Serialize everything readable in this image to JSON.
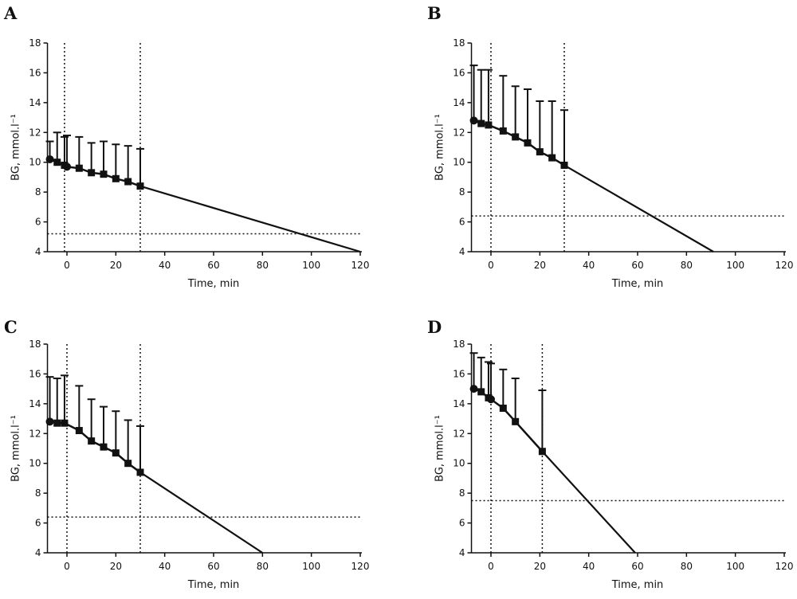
{
  "chart_data": [
    {
      "panel": "A",
      "type": "line",
      "xlabel": "Time, min",
      "ylabel": "BG, mmol.l⁻¹",
      "xlim": [
        -7,
        120
      ],
      "ylim": [
        4,
        18
      ],
      "xticks": [
        0,
        20,
        40,
        60,
        80,
        100,
        120
      ],
      "yticks": [
        4,
        6,
        8,
        10,
        12,
        14,
        16,
        18
      ],
      "grid": false,
      "vlines": [
        -1,
        30
      ],
      "hline": 5.2,
      "points": [
        {
          "x": -7,
          "y": 10.2,
          "err": 1.2,
          "marker": "circle"
        },
        {
          "x": -4,
          "y": 10.0,
          "err": 2.0,
          "marker": "square"
        },
        {
          "x": -1,
          "y": 9.8,
          "err": 1.9,
          "marker": "square"
        },
        {
          "x": 0,
          "y": 9.7,
          "err": 2.1,
          "marker": "circle"
        },
        {
          "x": 5,
          "y": 9.6,
          "err": 2.1,
          "marker": "square"
        },
        {
          "x": 10,
          "y": 9.3,
          "err": 2.0,
          "marker": "square"
        },
        {
          "x": 15,
          "y": 9.2,
          "err": 2.2,
          "marker": "square"
        },
        {
          "x": 20,
          "y": 8.9,
          "err": 2.3,
          "marker": "square"
        },
        {
          "x": 25,
          "y": 8.7,
          "err": 2.4,
          "marker": "square"
        },
        {
          "x": 30,
          "y": 8.4,
          "err": 2.5,
          "marker": "square"
        }
      ],
      "extrapolation": [
        [
          30,
          8.4
        ],
        [
          120,
          4.0
        ]
      ]
    },
    {
      "panel": "B",
      "type": "line",
      "xlabel": "Time, min",
      "ylabel": "BG, mmol.l⁻¹",
      "xlim": [
        -7,
        120
      ],
      "ylim": [
        4,
        18
      ],
      "xticks": [
        0,
        20,
        40,
        60,
        80,
        100,
        120
      ],
      "yticks": [
        4,
        6,
        8,
        10,
        12,
        14,
        16,
        18
      ],
      "grid": false,
      "vlines": [
        0,
        30
      ],
      "hline": 6.4,
      "points": [
        {
          "x": -7,
          "y": 12.8,
          "err": 3.7,
          "marker": "circle"
        },
        {
          "x": -4,
          "y": 12.6,
          "err": 3.6,
          "marker": "square"
        },
        {
          "x": -1,
          "y": 12.5,
          "err": 3.7,
          "marker": "square"
        },
        {
          "x": 5,
          "y": 12.1,
          "err": 3.7,
          "marker": "square"
        },
        {
          "x": 10,
          "y": 11.7,
          "err": 3.4,
          "marker": "square"
        },
        {
          "x": 15,
          "y": 11.3,
          "err": 3.6,
          "marker": "square"
        },
        {
          "x": 20,
          "y": 10.7,
          "err": 3.4,
          "marker": "square"
        },
        {
          "x": 25,
          "y": 10.3,
          "err": 3.8,
          "marker": "square"
        },
        {
          "x": 30,
          "y": 9.8,
          "err": 3.7,
          "marker": "square"
        }
      ],
      "extrapolation": [
        [
          30,
          9.8
        ],
        [
          91,
          4.0
        ]
      ]
    },
    {
      "panel": "C",
      "type": "line",
      "xlabel": "Time, min",
      "ylabel": "BG, mmol.l⁻¹",
      "xlim": [
        -7,
        120
      ],
      "ylim": [
        4,
        18
      ],
      "xticks": [
        0,
        20,
        40,
        60,
        80,
        100,
        120
      ],
      "yticks": [
        4,
        6,
        8,
        10,
        12,
        14,
        16,
        18
      ],
      "grid": false,
      "vlines": [
        0,
        30
      ],
      "hline": 6.4,
      "points": [
        {
          "x": -7,
          "y": 12.8,
          "err": 3.0,
          "marker": "circle"
        },
        {
          "x": -4,
          "y": 12.7,
          "err": 3.0,
          "marker": "square"
        },
        {
          "x": -1,
          "y": 12.7,
          "err": 3.2,
          "marker": "square"
        },
        {
          "x": 5,
          "y": 12.2,
          "err": 3.0,
          "marker": "square"
        },
        {
          "x": 10,
          "y": 11.5,
          "err": 2.8,
          "marker": "square"
        },
        {
          "x": 15,
          "y": 11.1,
          "err": 2.7,
          "marker": "square"
        },
        {
          "x": 20,
          "y": 10.7,
          "err": 2.8,
          "marker": "square"
        },
        {
          "x": 25,
          "y": 10.0,
          "err": 2.9,
          "marker": "square"
        },
        {
          "x": 30,
          "y": 9.4,
          "err": 3.1,
          "marker": "square"
        }
      ],
      "extrapolation": [
        [
          30,
          9.4
        ],
        [
          80,
          4.0
        ]
      ]
    },
    {
      "panel": "D",
      "type": "line",
      "xlabel": "Time, min",
      "ylabel": "BG, mmol.l⁻¹",
      "xlim": [
        -7,
        120
      ],
      "ylim": [
        4,
        18
      ],
      "xticks": [
        0,
        20,
        40,
        60,
        80,
        100,
        120
      ],
      "yticks": [
        4,
        6,
        8,
        10,
        12,
        14,
        16,
        18
      ],
      "grid": false,
      "vlines": [
        0,
        21
      ],
      "hline": 7.5,
      "points": [
        {
          "x": -7,
          "y": 15.0,
          "err": 2.4,
          "marker": "circle"
        },
        {
          "x": -4,
          "y": 14.8,
          "err": 2.3,
          "marker": "square"
        },
        {
          "x": -1,
          "y": 14.4,
          "err": 2.4,
          "marker": "square"
        },
        {
          "x": 0,
          "y": 14.3,
          "err": 2.4,
          "marker": "circle"
        },
        {
          "x": 5,
          "y": 13.7,
          "err": 2.6,
          "marker": "square"
        },
        {
          "x": 10,
          "y": 12.8,
          "err": 2.9,
          "marker": "square"
        },
        {
          "x": 21,
          "y": 10.8,
          "err": 4.1,
          "marker": "square"
        }
      ],
      "extrapolation": [
        [
          21,
          10.8
        ],
        [
          59,
          4.0
        ]
      ]
    }
  ]
}
